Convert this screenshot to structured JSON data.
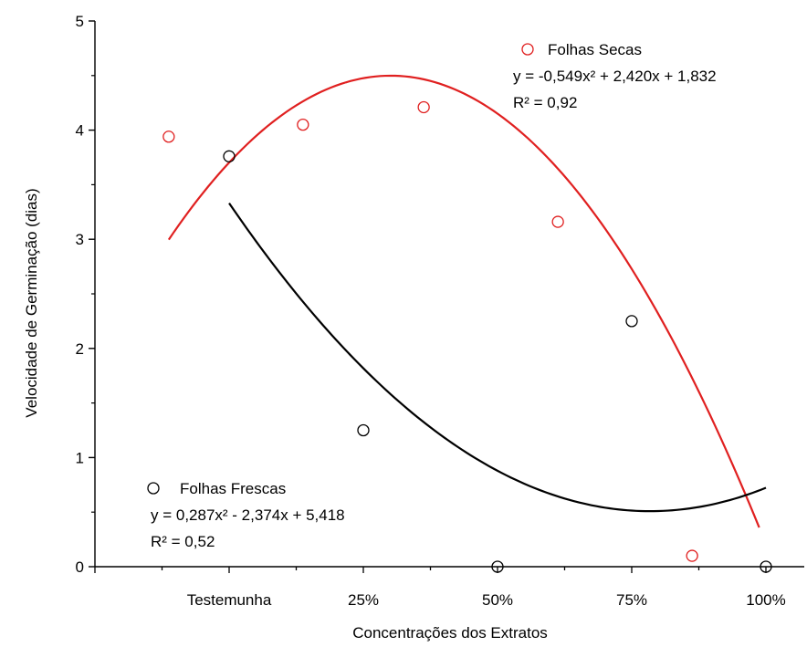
{
  "chart_data": {
    "type": "scatter",
    "xlabel": "Concentrações dos Extratos",
    "ylabel": "Velocidade de Germinação (dias)",
    "xlim": [
      0,
      5
    ],
    "ylim": [
      0,
      5
    ],
    "x_ticks": [
      {
        "x": 1,
        "label": "Testemunha"
      },
      {
        "x": 2,
        "label": "25%"
      },
      {
        "x": 3,
        "label": "50%"
      },
      {
        "x": 4,
        "label": "75%"
      },
      {
        "x": 5,
        "label": "100%"
      }
    ],
    "y_ticks": [
      0,
      1,
      2,
      3,
      4,
      5
    ],
    "grid": false,
    "series": [
      {
        "name": "Folhas Secas",
        "color": "#e02020",
        "marker": "hollow-circle",
        "equation": "y = -0,549x² + 2,420x + 1,832",
        "r2": "R² = 0,92",
        "fit": {
          "a": -0.549,
          "b": 2.42,
          "c": 1.832,
          "x_range": [
            0.55,
            4.95
          ]
        },
        "points": [
          {
            "x": 0.55,
            "y": 3.94
          },
          {
            "x": 1.55,
            "y": 4.05
          },
          {
            "x": 2.45,
            "y": 4.21
          },
          {
            "x": 3.45,
            "y": 3.16
          },
          {
            "x": 4.45,
            "y": 0.1
          }
        ]
      },
      {
        "name": "Folhas Frescas",
        "color": "#000000",
        "marker": "hollow-circle",
        "equation": "y = 0,287x² - 2,374x + 5,418",
        "r2": "R² = 0,52",
        "fit": {
          "a": 0.287,
          "b": -2.374,
          "c": 5.418,
          "x_range": [
            1,
            5
          ]
        },
        "points": [
          {
            "x": 1,
            "y": 3.76
          },
          {
            "x": 2,
            "y": 1.25
          },
          {
            "x": 3,
            "y": 0.0
          },
          {
            "x": 4,
            "y": 2.25
          },
          {
            "x": 5,
            "y": 0.0
          }
        ]
      }
    ]
  }
}
